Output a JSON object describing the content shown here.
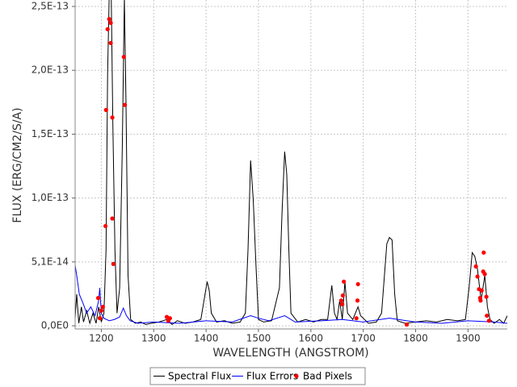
{
  "chart_data": {
    "type": "line",
    "xlabel": "WAVELENGTH (ANGSTROM)",
    "ylabel": "FLUX (ERG/CM2/S/A)",
    "xlim": [
      1150,
      1975
    ],
    "ylim": [
      -2.5e-15,
      2.53e-13
    ],
    "xticks": [
      1200,
      1300,
      1400,
      1500,
      1600,
      1700,
      1800,
      1900
    ],
    "yticks": [
      {
        "value": 0,
        "label": "0,0E0"
      },
      {
        "value": 5.06e-14,
        "label": "5,1E-14"
      },
      {
        "value": 1.012e-13,
        "label": "1,0E-13"
      },
      {
        "value": 1.518e-13,
        "label": "1,5E-13"
      },
      {
        "value": 2.024e-13,
        "label": "2,0E-13"
      },
      {
        "value": 2.53e-13,
        "label": "2,5E-13"
      }
    ],
    "grid": true,
    "legend": "bottom",
    "series": [
      {
        "name": "Spectral Flux",
        "color": "#000000",
        "type": "line",
        "x": [
          1150,
          1153,
          1157,
          1162,
          1166,
          1172,
          1178,
          1184,
          1190,
          1195,
          1200,
          1205,
          1209,
          1212,
          1215,
          1219,
          1222,
          1226,
          1230,
          1235,
          1240,
          1244,
          1247,
          1251,
          1256,
          1265,
          1275,
          1285,
          1295,
          1310,
          1325,
          1335,
          1345,
          1360,
          1375,
          1390,
          1398,
          1402,
          1406,
          1410,
          1420,
          1435,
          1450,
          1465,
          1475,
          1480,
          1485,
          1490,
          1495,
          1500,
          1510,
          1525,
          1540,
          1545,
          1550,
          1554,
          1558,
          1562,
          1575,
          1590,
          1605,
          1620,
          1632,
          1640,
          1645,
          1650,
          1655,
          1660,
          1665,
          1670,
          1680,
          1690,
          1695,
          1710,
          1725,
          1735,
          1745,
          1750,
          1755,
          1760,
          1765,
          1780,
          1800,
          1820,
          1840,
          1860,
          1880,
          1895,
          1902,
          1908,
          1913,
          1918,
          1925,
          1932,
          1937,
          1942,
          1950,
          1960,
          1968,
          1975
        ],
        "values": [
          6e-15,
          2.5e-14,
          2e-15,
          1.5e-14,
          3e-15,
          1.2e-14,
          2e-15,
          1e-14,
          2e-15,
          1.5e-14,
          3e-15,
          1e-14,
          6e-14,
          2e-13,
          2.6e-13,
          2.6e-13,
          1.6e-13,
          6e-14,
          1e-14,
          3e-14,
          1.4e-13,
          2.6e-13,
          1.8e-13,
          4e-14,
          5e-15,
          2e-15,
          3e-15,
          1e-15,
          2e-15,
          3e-15,
          5e-15,
          1e-15,
          4e-15,
          2e-15,
          3e-15,
          5e-15,
          2.5e-14,
          3.5e-14,
          2.8e-14,
          1e-14,
          3e-15,
          4e-15,
          2e-15,
          3e-15,
          1e-14,
          6e-14,
          1.31e-13,
          1e-13,
          5e-14,
          5e-15,
          3e-15,
          4e-15,
          3e-14,
          9e-14,
          1.38e-13,
          1.2e-13,
          6e-14,
          1e-14,
          3e-15,
          5e-15,
          3e-15,
          5e-15,
          5e-15,
          3.2e-14,
          1e-14,
          5e-15,
          2e-14,
          5e-15,
          3.5e-14,
          1e-14,
          5e-15,
          1.5e-14,
          8e-15,
          2e-15,
          3e-15,
          1e-14,
          6.5e-14,
          7e-14,
          6.8e-14,
          2.5e-14,
          4e-15,
          2e-15,
          3e-15,
          4e-15,
          3e-15,
          5e-15,
          4e-15,
          5e-15,
          3e-14,
          5.8e-14,
          5.5e-14,
          4.5e-14,
          2e-14,
          4e-14,
          1.5e-14,
          5e-15,
          2e-15,
          5e-15,
          2e-15,
          8e-15
        ]
      },
      {
        "name": "Flux Errors",
        "color": "#0000ff",
        "type": "line",
        "x": [
          1150,
          1153,
          1158,
          1165,
          1172,
          1180,
          1188,
          1195,
          1197,
          1200,
          1205,
          1215,
          1225,
          1235,
          1242,
          1248,
          1255,
          1270,
          1300,
          1350,
          1400,
          1450,
          1485,
          1500,
          1520,
          1550,
          1570,
          1620,
          1660,
          1700,
          1750,
          1800,
          1850,
          1900,
          1950,
          1975
        ],
        "values": [
          4.8e-14,
          4e-14,
          2.5e-14,
          1.8e-14,
          1e-14,
          1.5e-14,
          8e-15,
          2e-14,
          3e-14,
          1e-14,
          6e-15,
          4e-15,
          5e-15,
          7e-15,
          1.4e-14,
          8e-15,
          4e-15,
          2e-15,
          3e-15,
          2e-15,
          4e-15,
          3e-15,
          8e-15,
          6e-15,
          4e-15,
          8e-15,
          3e-15,
          4e-15,
          5e-15,
          3e-15,
          6e-15,
          3e-15,
          2e-15,
          4e-15,
          3e-15,
          2e-15
        ]
      },
      {
        "name": "Bad Pixels",
        "color": "#ff0000",
        "type": "scatter",
        "x": [
          1194,
          1197,
          1200,
          1203,
          1209,
          1208,
          1212,
          1215,
          1218,
          1218,
          1221,
          1221,
          1223,
          1243,
          1245,
          1325,
          1328,
          1331,
          1658,
          1660,
          1661,
          1663,
          1687,
          1690,
          1689,
          1783,
          1915,
          1918,
          1921,
          1923,
          1924,
          1926,
          1929,
          1930,
          1932,
          1935,
          1936,
          1940
        ],
        "values": [
          2.2e-14,
          6e-15,
          1.2e-14,
          1.5e-14,
          1.71e-13,
          7.9e-14,
          2.35e-13,
          2.43e-13,
          2.4e-13,
          2.24e-13,
          1.65e-13,
          8.5e-14,
          4.9e-14,
          2.13e-13,
          1.75e-13,
          7e-15,
          4e-15,
          6e-15,
          2e-14,
          1.7e-14,
          2.4e-14,
          3.5e-14,
          6e-15,
          3.3e-14,
          2e-14,
          1e-15,
          4.7e-14,
          3.9e-14,
          2.9e-14,
          2.2e-14,
          2e-14,
          2.8e-14,
          4.3e-14,
          5.8e-14,
          4.1e-14,
          2.3e-14,
          8e-15,
          4e-15
        ]
      }
    ]
  }
}
